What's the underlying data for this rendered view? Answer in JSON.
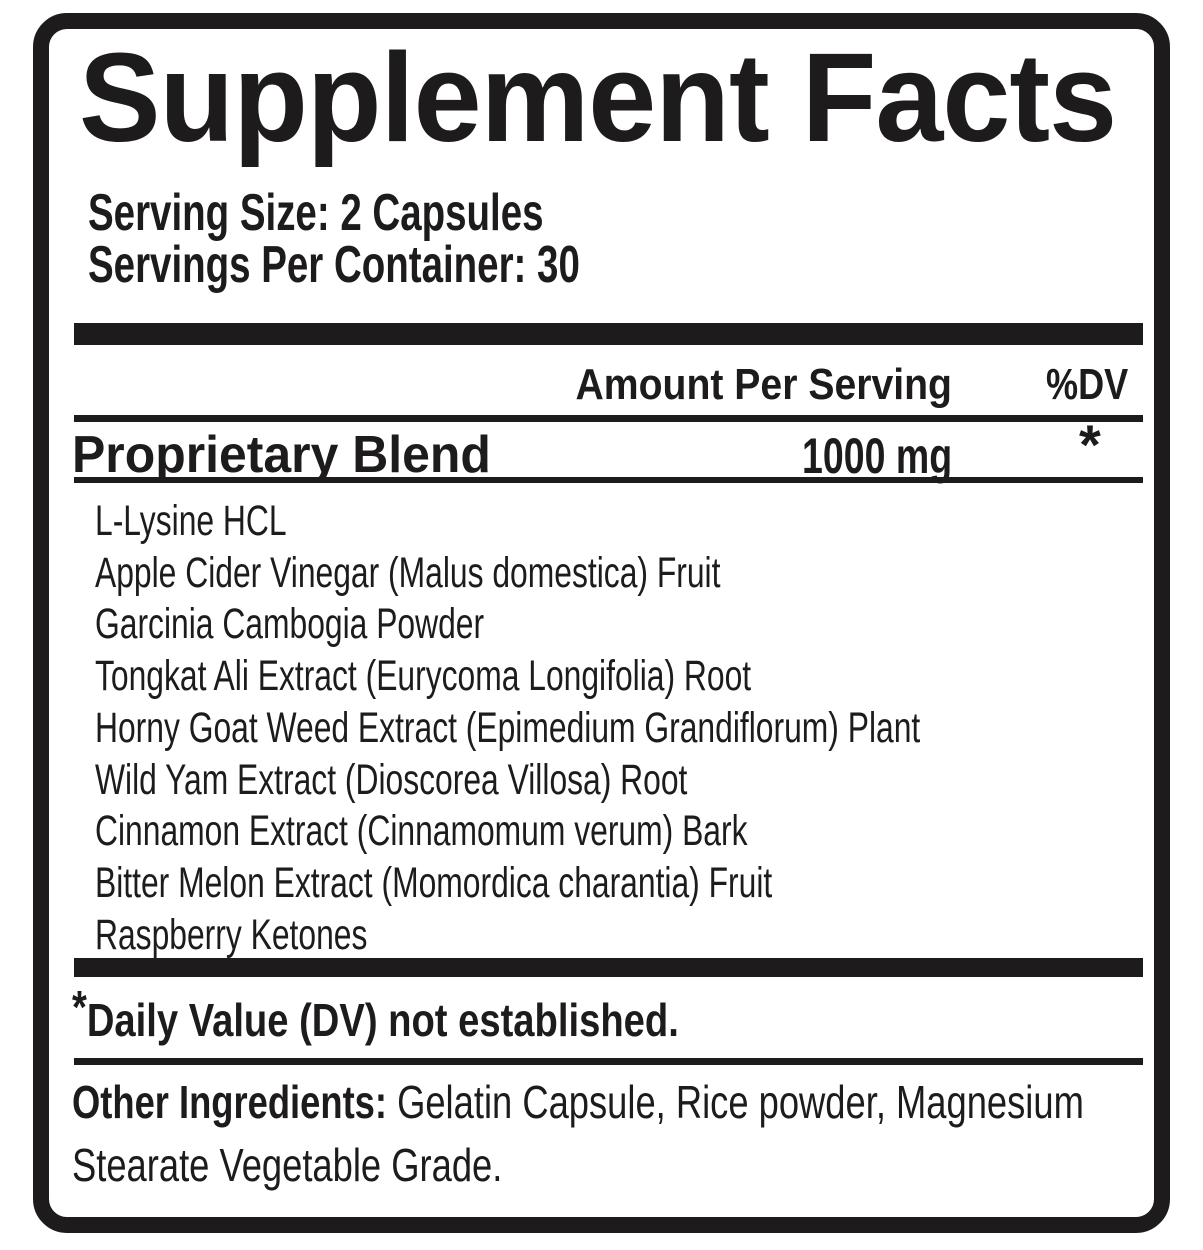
{
  "label": {
    "title": "Supplement Facts",
    "serving": {
      "size_line": "Serving Size: 2 Capsules",
      "per_container_line": "Servings Per Container: 30"
    },
    "columns": {
      "amount_header": "Amount Per Serving",
      "dv_header": "%DV"
    },
    "blend": {
      "name": "Proprietary Blend",
      "amount": "1000 mg",
      "dv_value": "*",
      "ingredients": [
        "L-Lysine HCL",
        "Apple Cider Vinegar (Malus domestica) Fruit",
        "Garcinia Cambogia Powder",
        "Tongkat Ali Extract (Eurycoma Longifolia) Root",
        "Horny Goat Weed Extract (Epimedium Grandiflorum) Plant",
        "Wild Yam Extract (Dioscorea Villosa) Root",
        "Cinnamon Extract (Cinnamomum verum) Bark",
        "Bitter Melon Extract (Momordica charantia) Fruit",
        "Raspberry Ketones"
      ]
    },
    "footnote": {
      "symbol": "*",
      "text": "Daily Value (DV) not established."
    },
    "other_ingredients": {
      "label": "Other Ingredients:",
      "line1": " Gelatin Capsule, Rice powder, Magnesium",
      "line2": "Stearate Vegetable Grade."
    },
    "colors": {
      "ink": "#1d1b1c",
      "background": "#ffffff"
    }
  }
}
